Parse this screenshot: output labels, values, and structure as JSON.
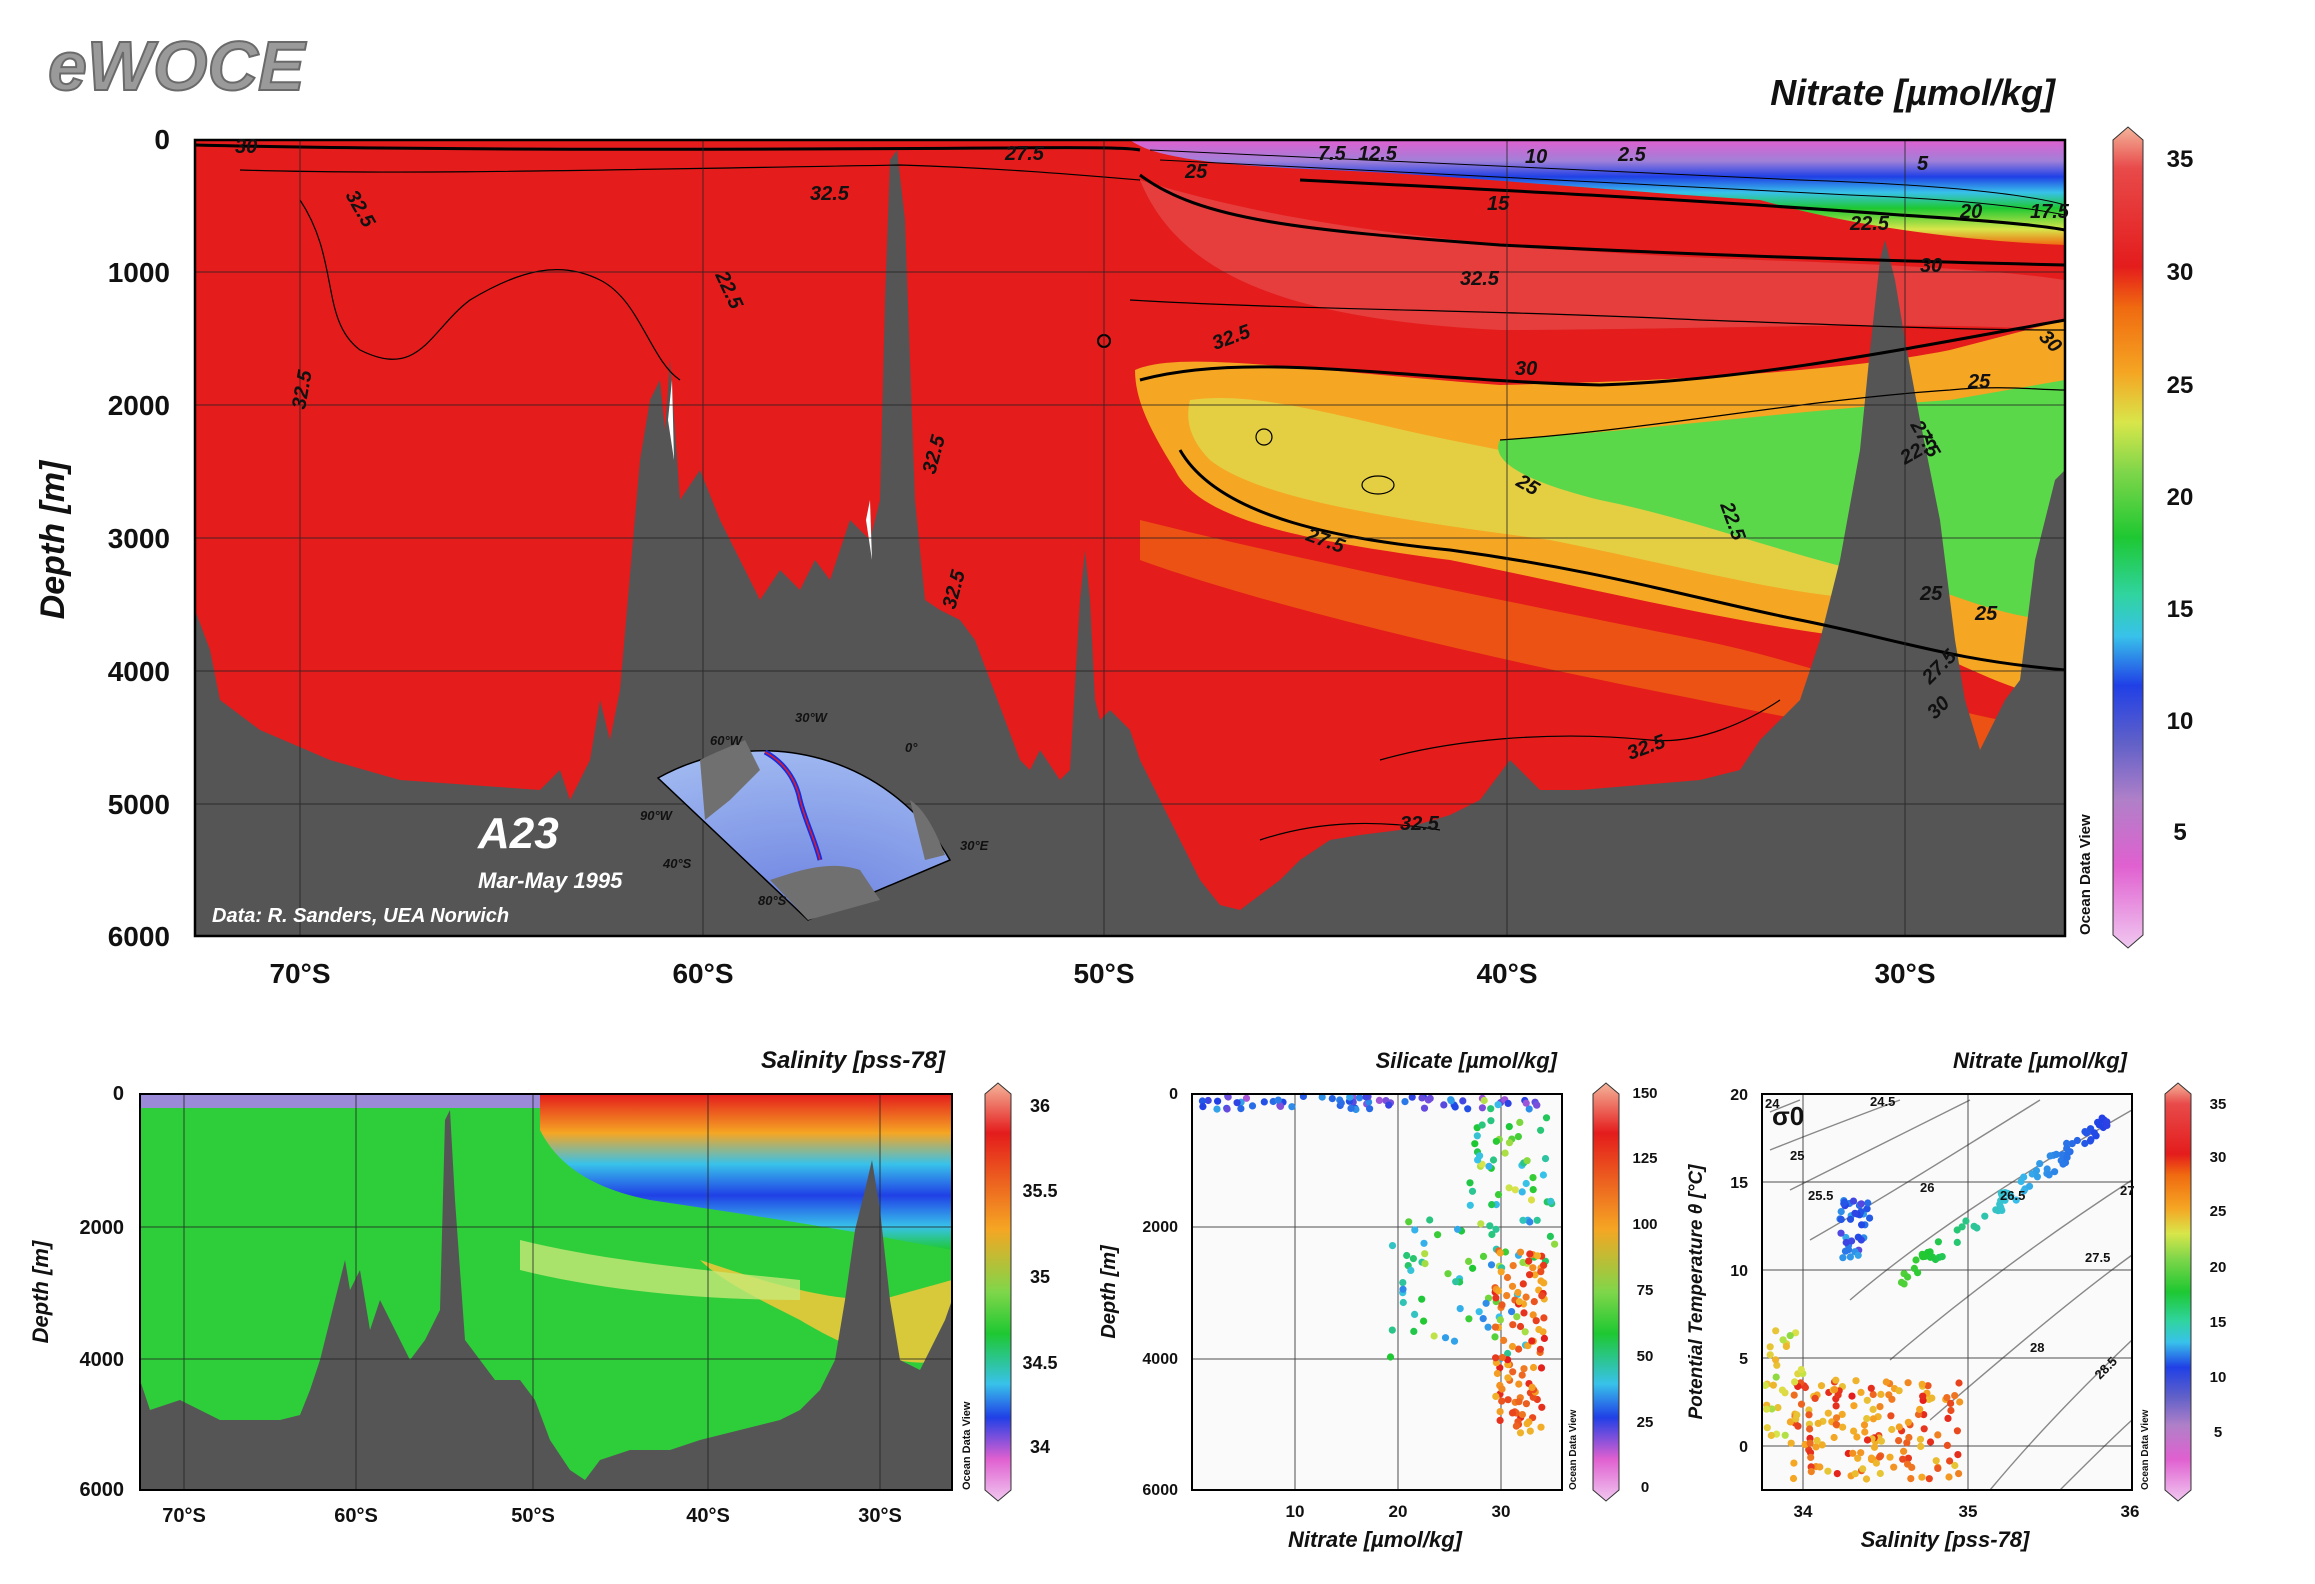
{
  "logo": "eWOCE",
  "main": {
    "title": "Nitrate [µmol/kg]",
    "ylabel": "Depth [m]",
    "section_name": "A23",
    "section_dates": "Mar-May 1995",
    "credit": "Data: R. Sanders, UEA Norwich",
    "watermark": "Ocean Data View",
    "y_ticks": [
      "0",
      "1000",
      "2000",
      "3000",
      "4000",
      "5000",
      "6000"
    ],
    "x_ticks": [
      "70°S",
      "60°S",
      "50°S",
      "40°S",
      "30°S"
    ],
    "colorbar_ticks": [
      "35",
      "30",
      "25",
      "20",
      "15",
      "10",
      "5"
    ],
    "contour_labels": [
      "30",
      "27.5",
      "7.5",
      "12.5",
      "10",
      "2.5",
      "5",
      "15",
      "20",
      "17.5",
      "25",
      "22.5",
      "32.5",
      "30",
      "32.5",
      "32.5",
      "22.5",
      "32.5",
      "30",
      "25",
      "22.5",
      "25",
      "27.5",
      "22.5",
      "32.5",
      "25",
      "27.5",
      "32.5",
      "30",
      "32.5",
      "27.5",
      "30",
      "25",
      "32.5",
      "32.5"
    ],
    "inset_map_labels": [
      "30°W",
      "60°W",
      "0°",
      "90°W",
      "30°E",
      "40°S",
      "80°S"
    ]
  },
  "chart_data": [
    {
      "type": "heatmap",
      "title": "Nitrate [µmol/kg]",
      "ylabel": "Depth [m]",
      "x_ticks": [
        "70°S",
        "60°S",
        "50°S",
        "40°S",
        "30°S"
      ],
      "y_ticks": [
        0,
        1000,
        2000,
        3000,
        4000,
        5000,
        6000
      ],
      "colorbar_ticks": [
        35,
        30,
        25,
        20,
        15,
        10,
        5
      ],
      "contour_levels": [
        2.5,
        5,
        7.5,
        10,
        12.5,
        15,
        17.5,
        20,
        22.5,
        25,
        27.5,
        30,
        32.5
      ]
    },
    {
      "type": "heatmap",
      "title": "Salinity [pss-78]",
      "ylabel": "Depth [m]",
      "x_ticks": [
        "70°S",
        "60°S",
        "50°S",
        "40°S",
        "30°S"
      ],
      "y_ticks": [
        "0",
        "2000",
        "4000",
        "6000"
      ],
      "colorbar_ticks": [
        "36",
        "35.5",
        "35",
        "34.5",
        "34"
      ],
      "watermark": "Ocean Data View"
    },
    {
      "type": "scatter",
      "title": "Silicate [µmol/kg]",
      "xlabel": "Nitrate [µmol/kg]",
      "ylabel": "Depth [m]",
      "x_ticks": [
        "10",
        "20",
        "30"
      ],
      "y_ticks": [
        "0",
        "2000",
        "4000",
        "6000"
      ],
      "colorbar_ticks": [
        "150",
        "125",
        "100",
        "75",
        "50",
        "25",
        "0"
      ],
      "watermark": "Ocean Data View"
    },
    {
      "type": "scatter",
      "title": "Nitrate [µmol/kg]",
      "xlabel": "Salinity [pss-78]",
      "ylabel": "Potential Temperature θ [°C]",
      "x_ticks": [
        "34",
        "35",
        "36"
      ],
      "y_ticks": [
        "20",
        "15",
        "10",
        "5",
        "0"
      ],
      "sigma_label": "σ0",
      "isopycnal_labels": [
        "24",
        "24.5",
        "25",
        "25.5",
        "26",
        "26.5",
        "27",
        "27.5",
        "28",
        "28.5"
      ],
      "colorbar_ticks": [
        "35",
        "30",
        "25",
        "20",
        "15",
        "10",
        "5"
      ],
      "watermark": "Ocean Data View"
    }
  ]
}
